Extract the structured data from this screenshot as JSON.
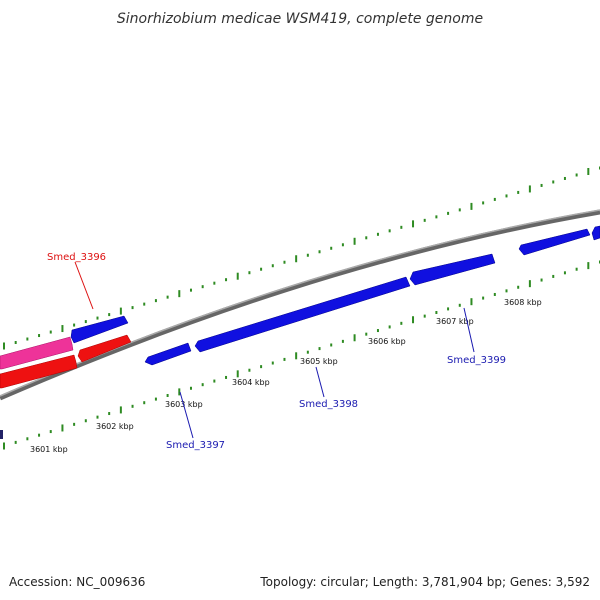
{
  "title": "Sinorhizobium medicae WSM419, complete genome",
  "footer": {
    "accession": "Accession: NC_009636",
    "summary": "Topology: circular; Length: 3,781,904 bp; Genes: 3,592"
  },
  "colors": {
    "forward_gene": "#1010e0",
    "reverse_gene": "#ee1111",
    "highlight_gene": "#ee3399",
    "backbone": "#888888",
    "tick": "#2e8b22",
    "label_red": "#dd1111",
    "label_blue": "#1a1ab0"
  },
  "ticks": [
    {
      "label": "3601 kbp"
    },
    {
      "label": "3602 kbp"
    },
    {
      "label": "3603 kbp"
    },
    {
      "label": "3604 kbp"
    },
    {
      "label": "3605 kbp"
    },
    {
      "label": "3606 kbp"
    },
    {
      "label": "3607 kbp"
    },
    {
      "label": "3608 kbp"
    }
  ],
  "gene_labels": [
    {
      "text": "Smed_3396",
      "color": "red"
    },
    {
      "text": "Smed_3397",
      "color": "blue"
    },
    {
      "text": "Smed_3398",
      "color": "blue"
    },
    {
      "text": "Smed_3399",
      "color": "blue"
    }
  ]
}
